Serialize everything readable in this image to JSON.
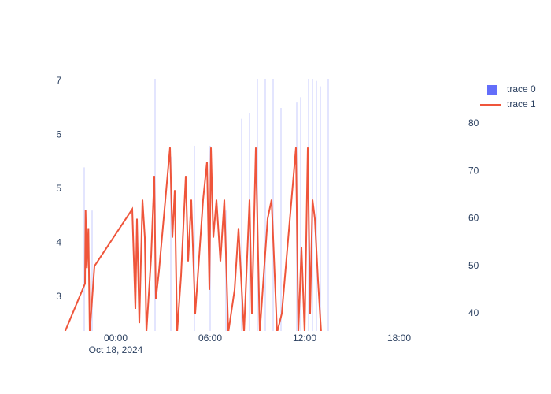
{
  "chart_data": {
    "type": "bar_line_dual_axis",
    "xlim": [
      "2024-10-17 20:39",
      "2024-10-18 22:18"
    ],
    "xticks": [
      {
        "value": "2024-10-18 00:00",
        "label": "00:00"
      },
      {
        "value": "2024-10-18 06:00",
        "label": "06:00"
      },
      {
        "value": "2024-10-18 12:00",
        "label": "12:00"
      },
      {
        "value": "2024-10-18 18:00",
        "label": "18:00"
      }
    ],
    "xtick_date": "Oct 18, 2024",
    "ylim": [
      2.37,
      7.04
    ],
    "yticks": [
      3,
      4,
      5,
      6,
      7
    ],
    "y2lim": [
      36.35,
      89.45
    ],
    "y2ticks": [
      40,
      50,
      60,
      70,
      80
    ],
    "grid": true,
    "legend": "top-right",
    "series": [
      {
        "name": "trace 0",
        "type": "bar",
        "color": "#636efa",
        "x": [
          "2024-10-17 22:00",
          "2024-10-17 22:30",
          "2024-10-18 02:30",
          "2024-10-18 03:30",
          "2024-10-18 05:00",
          "2024-10-18 06:00",
          "2024-10-18 07:00",
          "2024-10-18 08:00",
          "2024-10-18 08:30",
          "2024-10-18 09:00",
          "2024-10-18 09:30",
          "2024-10-18 10:00",
          "2024-10-18 10:30",
          "2024-10-18 11:30",
          "2024-10-18 11:45",
          "2024-10-18 12:15",
          "2024-10-18 12:30",
          "2024-10-18 12:45",
          "2024-10-18 13:00",
          "2024-10-18 13:30"
        ],
        "values": [
          5.4,
          4.6,
          7.2,
          5.6,
          5.8,
          5.8,
          4.6,
          6.3,
          6.4,
          7.1,
          7.1,
          7.1,
          6.5,
          6.6,
          6.7,
          7.1,
          7.1,
          7.0,
          6.9,
          7.1
        ]
      },
      {
        "name": "trace 1",
        "type": "line",
        "axis": "y2",
        "color": "#ef553b",
        "x": [
          "2024-10-17 20:45",
          "2024-10-17 22:03",
          "2024-10-17 22:05",
          "2024-10-17 22:10",
          "2024-10-17 22:16",
          "2024-10-17 22:21",
          "2024-10-17 22:39",
          "2024-10-18 01:03",
          "2024-10-18 01:15",
          "2024-10-18 01:21",
          "2024-10-18 01:30",
          "2024-10-18 01:42",
          "2024-10-18 01:51",
          "2024-10-18 01:57",
          "2024-10-18 02:15",
          "2024-10-18 02:27",
          "2024-10-18 02:33",
          "2024-10-18 02:45",
          "2024-10-18 03:27",
          "2024-10-18 03:36",
          "2024-10-18 03:45",
          "2024-10-18 03:54",
          "2024-10-18 04:09",
          "2024-10-18 04:27",
          "2024-10-18 04:36",
          "2024-10-18 04:48",
          "2024-10-18 05:03",
          "2024-10-18 05:33",
          "2024-10-18 05:48",
          "2024-10-18 05:57",
          "2024-10-18 06:03",
          "2024-10-18 06:12",
          "2024-10-18 06:24",
          "2024-10-18 06:39",
          "2024-10-18 06:54",
          "2024-10-18 07:09",
          "2024-10-18 07:33",
          "2024-10-18 07:48",
          "2024-10-18 08:09",
          "2024-10-18 08:30",
          "2024-10-18 08:39",
          "2024-10-18 08:54",
          "2024-10-18 09:09",
          "2024-10-18 09:39",
          "2024-10-18 09:54",
          "2024-10-18 10:15",
          "2024-10-18 10:33",
          "2024-10-18 11:27",
          "2024-10-18 11:36",
          "2024-10-18 11:48",
          "2024-10-18 12:00",
          "2024-10-18 12:12",
          "2024-10-18 12:21",
          "2024-10-18 12:30",
          "2024-10-18 12:39",
          "2024-10-18 12:51",
          "2024-10-18 13:03"
        ],
        "values": [
          36,
          46.3,
          61.8,
          49.6,
          58,
          36,
          50,
          62,
          41,
          60,
          38,
          64,
          56,
          36,
          52,
          69,
          43,
          49,
          75,
          56,
          66,
          36,
          48,
          69,
          51,
          64,
          40,
          64,
          72,
          45,
          75,
          56,
          64,
          51,
          64,
          36,
          45,
          58,
          36,
          64,
          40,
          75,
          36,
          60,
          64,
          36,
          40,
          75,
          36,
          54,
          36,
          75,
          40,
          64,
          60,
          47,
          36
        ]
      }
    ]
  }
}
